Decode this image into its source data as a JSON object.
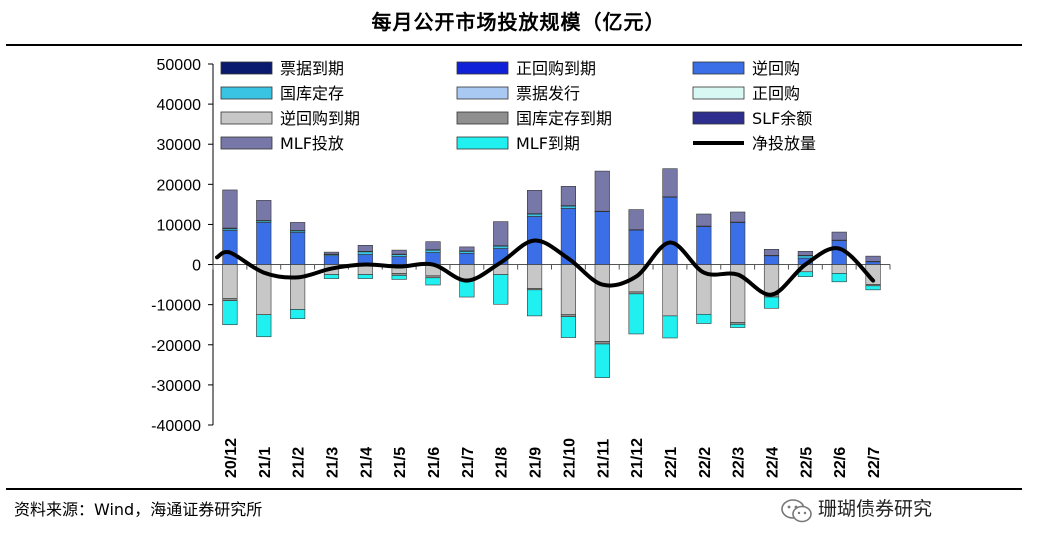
{
  "title": "每月公开市场投放规模（亿元）",
  "source": "资料来源：Wind，海通证券研究所",
  "brand": "珊瑚债券研究",
  "brand_icon": "wechat-icon",
  "colors": {
    "票据到期": "#0a1a6e",
    "正回购到期": "#1020d8",
    "逆回购": "#3b6fe8",
    "国库定存": "#38c4e2",
    "票据发行": "#a9c8f2",
    "正回购": "#d8f8f4",
    "逆回购到期": "#c7c7c7",
    "国库定存到期": "#8f8f8f",
    "SLF余额": "#2d2e8e",
    "MLF投放": "#7878a8",
    "MLF到期": "#21f0f0",
    "净投放量": "#000000"
  },
  "chart_data": {
    "type": "bar",
    "stacked": true,
    "title": "每月公开市场投放规模（亿元）",
    "xlabel": "",
    "ylabel": "",
    "ylim": [
      -40000,
      50000
    ],
    "yticks": [
      50000,
      40000,
      30000,
      20000,
      10000,
      0,
      -10000,
      -20000,
      -30000,
      -40000
    ],
    "categories": [
      "20/12",
      "21/1",
      "21/2",
      "21/3",
      "21/4",
      "21/5",
      "21/6",
      "21/7",
      "21/8",
      "21/9",
      "21/10",
      "21/11",
      "21/12",
      "22/1",
      "22/2",
      "22/3",
      "22/4",
      "22/5",
      "22/6",
      "22/7"
    ],
    "legend_position": "top",
    "series": [
      {
        "name": "票据到期",
        "values": [
          0,
          0,
          0,
          0,
          0,
          0,
          0,
          0,
          0,
          0,
          0,
          0,
          0,
          0,
          0,
          0,
          0,
          0,
          0,
          0
        ]
      },
      {
        "name": "正回购到期",
        "values": [
          0,
          0,
          0,
          0,
          0,
          0,
          0,
          0,
          0,
          0,
          0,
          0,
          0,
          0,
          0,
          0,
          0,
          0,
          0,
          0
        ]
      },
      {
        "name": "逆回购",
        "values": [
          8500,
          10500,
          8000,
          2200,
          2500,
          2000,
          3000,
          2800,
          4000,
          12000,
          14000,
          13200,
          8600,
          16800,
          9500,
          10500,
          2200,
          1600,
          6000,
          700
        ]
      },
      {
        "name": "国库定存",
        "values": [
          400,
          400,
          400,
          300,
          700,
          500,
          600,
          500,
          600,
          600,
          600,
          0,
          0,
          0,
          0,
          0,
          0,
          600,
          0,
          0
        ]
      },
      {
        "name": "票据发行",
        "values": [
          0,
          0,
          0,
          0,
          0,
          0,
          0,
          0,
          0,
          0,
          0,
          0,
          0,
          0,
          0,
          0,
          0,
          0,
          0,
          0
        ]
      },
      {
        "name": "正回购",
        "values": [
          0,
          0,
          0,
          0,
          0,
          0,
          0,
          0,
          0,
          0,
          0,
          0,
          0,
          0,
          0,
          0,
          0,
          0,
          0,
          0
        ]
      },
      {
        "name": "逆回购到期",
        "values": [
          -8500,
          -12500,
          -11200,
          -2500,
          -2500,
          -2200,
          -2800,
          -3600,
          -2500,
          -6000,
          -12500,
          -19200,
          -6800,
          -12800,
          -12400,
          -14400,
          -7500,
          -1800,
          -2200,
          -5000
        ]
      },
      {
        "name": "国库定存到期",
        "values": [
          -500,
          0,
          0,
          0,
          0,
          -500,
          -500,
          0,
          0,
          -300,
          -500,
          -600,
          -500,
          0,
          0,
          -500,
          -600,
          0,
          0,
          -300
        ]
      },
      {
        "name": "SLF余额",
        "values": [
          200,
          100,
          100,
          100,
          100,
          100,
          100,
          100,
          100,
          100,
          100,
          100,
          100,
          100,
          100,
          100,
          100,
          100,
          100,
          100
        ]
      },
      {
        "name": "MLF投放",
        "values": [
          9500,
          5000,
          2000,
          500,
          1500,
          1000,
          2000,
          1000,
          6000,
          5800,
          4800,
          10000,
          5000,
          7000,
          3000,
          2500,
          1500,
          1000,
          2000,
          1300
        ]
      },
      {
        "name": "MLF到期",
        "values": [
          -6000,
          -5500,
          -2300,
          -1000,
          -1000,
          -1000,
          -1800,
          -4500,
          -7400,
          -6500,
          -5200,
          -8400,
          -10000,
          -5500,
          -2300,
          -800,
          -2800,
          -1200,
          -2100,
          -1000
        ]
      }
    ],
    "line": {
      "name": "净投放量",
      "values": [
        3000,
        -2000,
        -3200,
        -1000,
        0,
        -500,
        0,
        -4000,
        500,
        6000,
        1500,
        -5000,
        -3000,
        5500,
        -2000,
        -2500,
        -7500,
        0,
        4000,
        -4000
      ]
    }
  }
}
